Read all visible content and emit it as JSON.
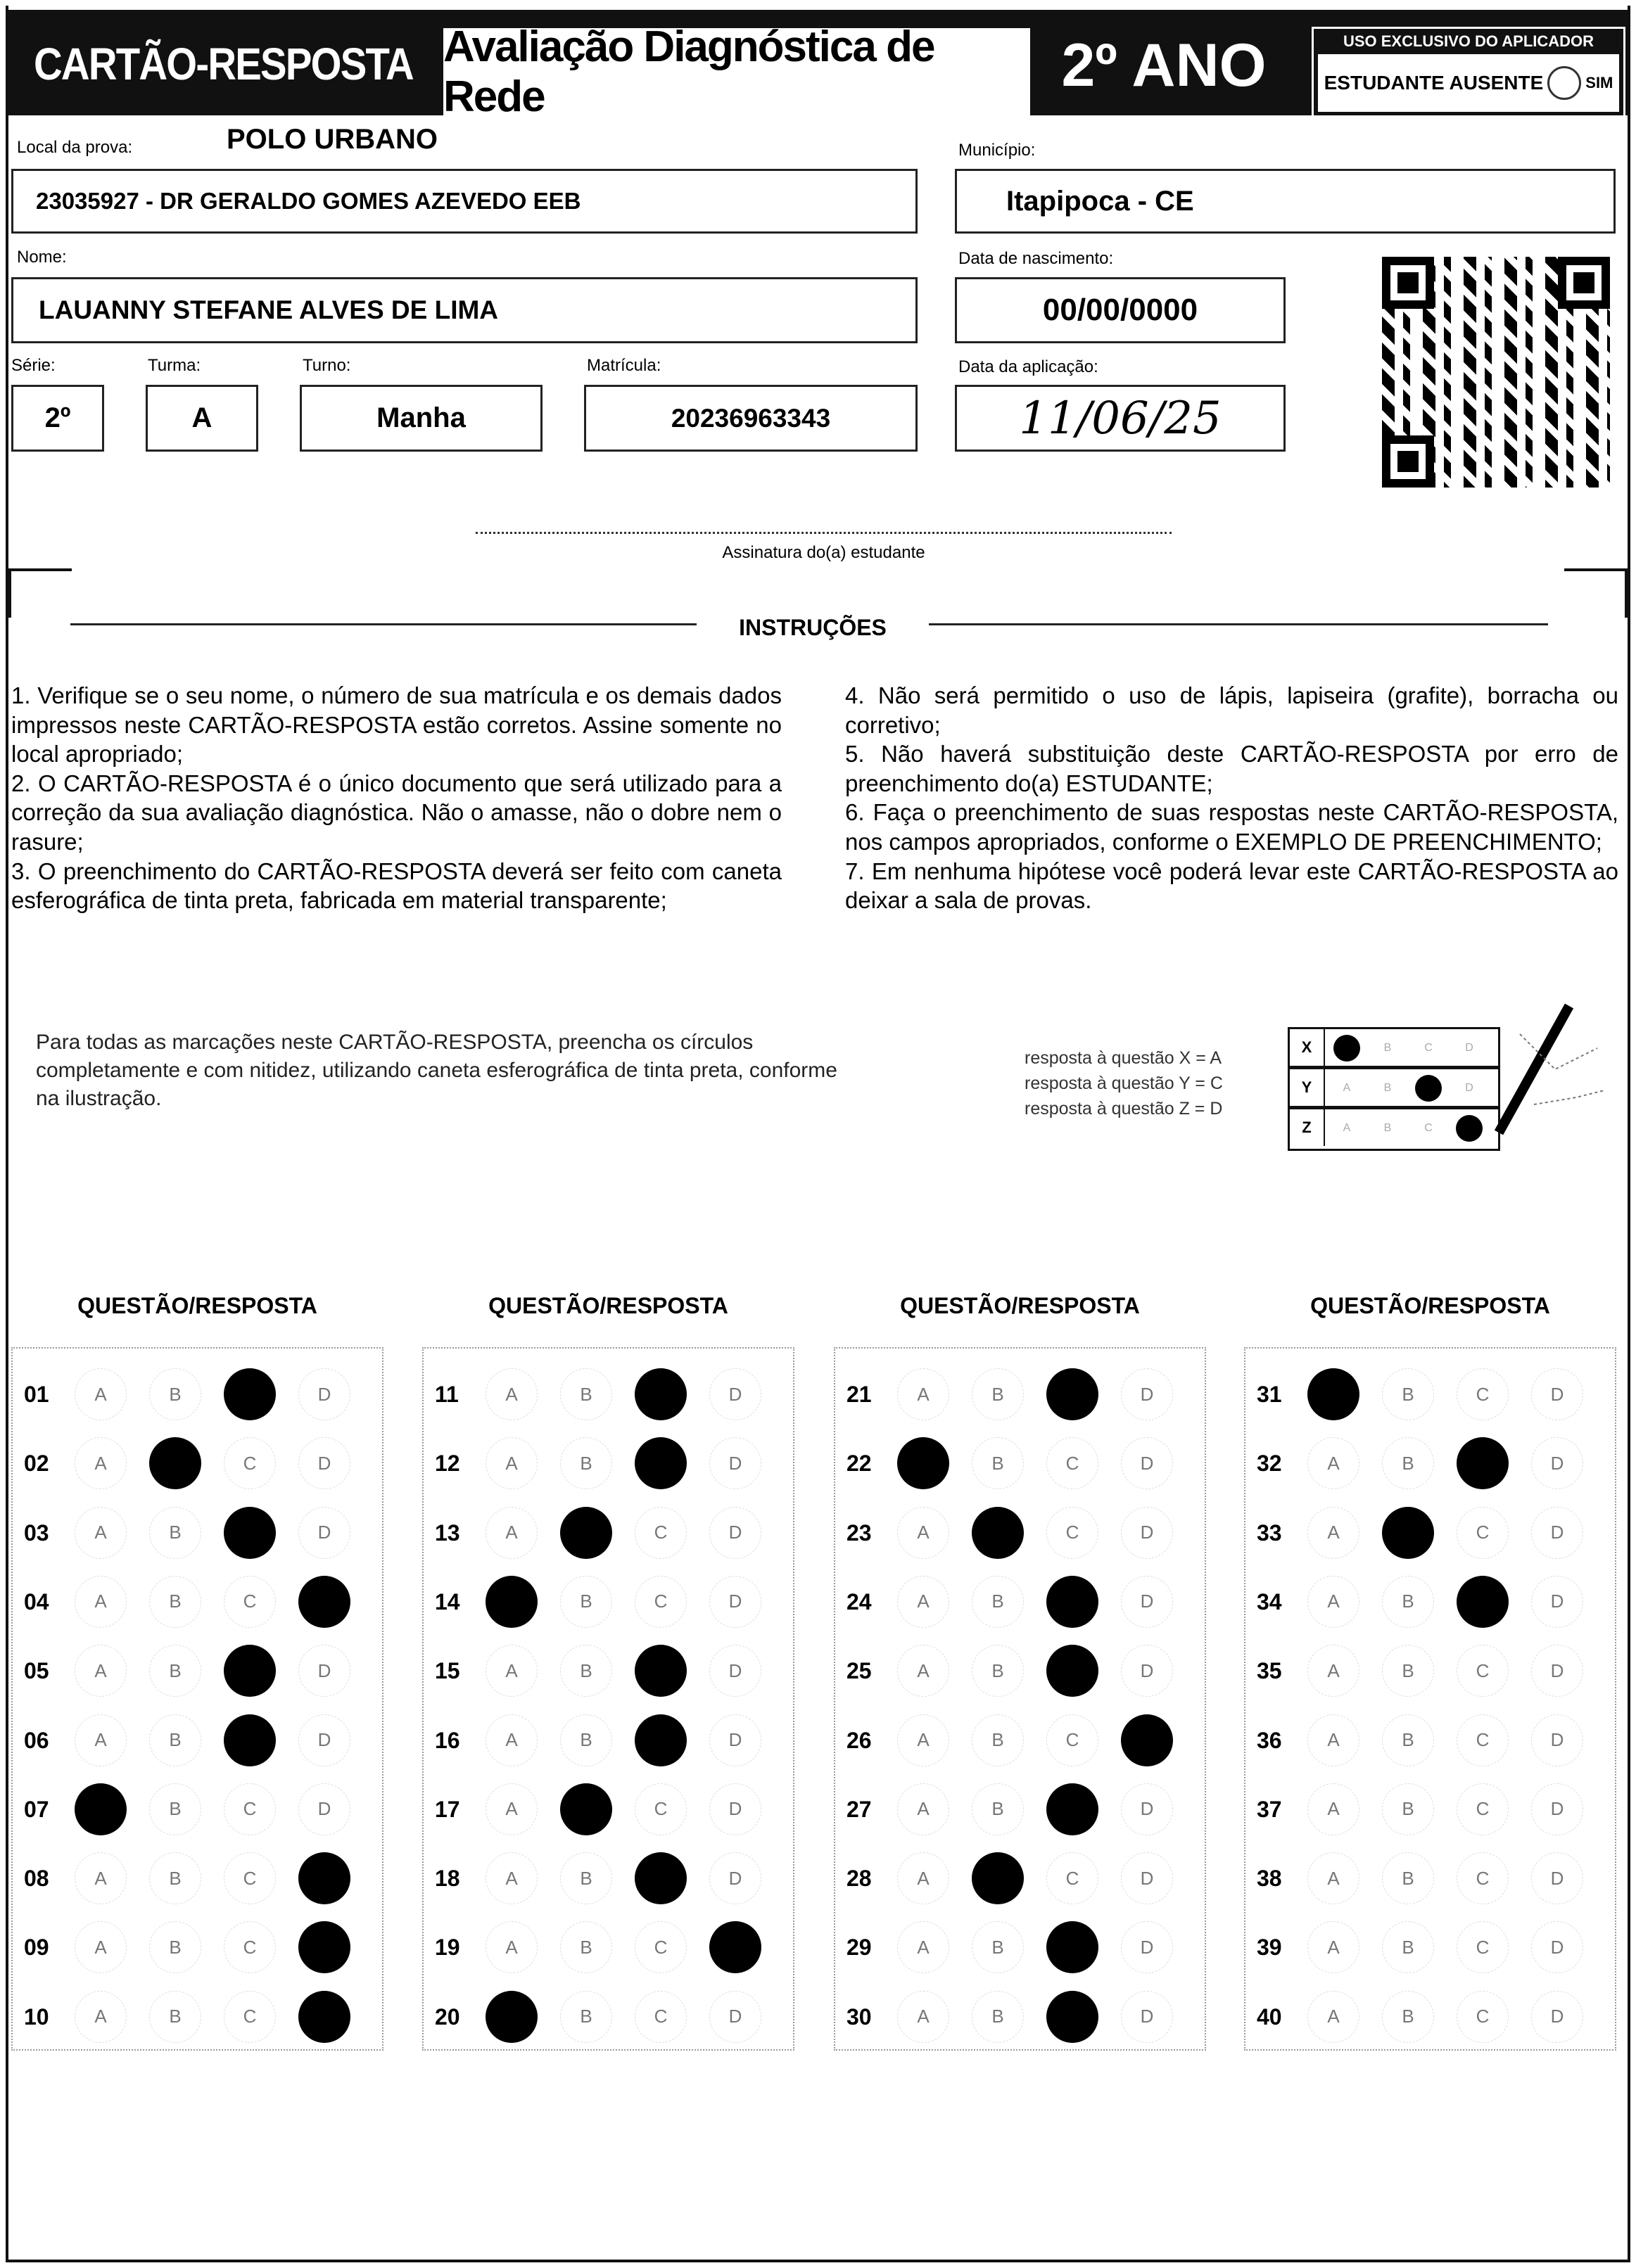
{
  "header": {
    "title": "CARTÃO-RESPOSTA",
    "subtitle": "Avaliação Diagnóstica de Rede",
    "grade": "2º ANO",
    "applicator_label": "USO EXCLUSIVO DO APLICADOR",
    "absent_label": "ESTUDANTE AUSENTE",
    "absent_option": "SIM"
  },
  "fields": {
    "local_label": "Local da prova:",
    "local_value": "POLO URBANO",
    "school": "23035927 - DR GERALDO GOMES AZEVEDO EEB",
    "municipio_label": "Município:",
    "municipio": "Itapipoca - CE",
    "nome_label": "Nome:",
    "nome": "LAUANNY STEFANE ALVES DE LIMA",
    "nascimento_label": "Data de nascimento:",
    "nascimento": "00/00/0000",
    "serie_label": "Série:",
    "serie": "2º",
    "turma_label": "Turma:",
    "turma": "A",
    "turno_label": "Turno:",
    "turno": "Manha",
    "matricula_label": "Matrícula:",
    "matricula": "20236963343",
    "aplicacao_label": "Data da aplicação:",
    "aplicacao": "11/06/25"
  },
  "signature_label": "Assinatura do(a) estudante",
  "instructions": {
    "title": "INSTRUÇÕES",
    "left": [
      "1. Verifique se o seu nome, o número de sua matrícula e os demais dados impressos neste CARTÃO-RESPOSTA estão corretos. Assine somente no local apropriado;",
      "2. O CARTÃO-RESPOSTA é o único documento que será utilizado para a correção da sua avaliação diagnóstica. Não o amasse, não o dobre nem o rasure;",
      "3. O preenchimento do CARTÃO-RESPOSTA deverá ser feito com caneta esferográfica de tinta preta, fabricada em material transparente;"
    ],
    "right": [
      "4. Não será permitido o uso de lápis, lapiseira (grafite), borracha ou corretivo;",
      "5. Não haverá substituição deste CARTÃO-RESPOSTA por erro de preenchimento do(a) ESTUDANTE;",
      "6. Faça o preenchimento de suas respostas neste CARTÃO-RESPOSTA, nos campos apropriados, conforme o EXEMPLO DE PREENCHIMENTO;",
      "7. Em nenhuma hipótese você poderá levar este CARTÃO-RESPOSTA ao deixar a sala de provas."
    ]
  },
  "fill_note": "Para todas as marcações neste CARTÃO-RESPOSTA, preencha os círculos completamente e com nitidez, utilizando caneta esferográfica de tinta preta, conforme na ilustração.",
  "example": {
    "legend": [
      "resposta à questão X = A",
      "resposta à questão Y = C",
      "resposta à questão Z = D"
    ],
    "rows": [
      {
        "q": "X",
        "answer": "A"
      },
      {
        "q": "Y",
        "answer": "C"
      },
      {
        "q": "Z",
        "answer": "D"
      }
    ]
  },
  "answers_header": "QUESTÃO/RESPOSTA",
  "options": [
    "A",
    "B",
    "C",
    "D"
  ],
  "answers": [
    {
      "q": "01",
      "a": "C"
    },
    {
      "q": "02",
      "a": "B"
    },
    {
      "q": "03",
      "a": "C"
    },
    {
      "q": "04",
      "a": "D"
    },
    {
      "q": "05",
      "a": "C"
    },
    {
      "q": "06",
      "a": "C"
    },
    {
      "q": "07",
      "a": "A"
    },
    {
      "q": "08",
      "a": "D"
    },
    {
      "q": "09",
      "a": "D"
    },
    {
      "q": "10",
      "a": "D"
    },
    {
      "q": "11",
      "a": "C"
    },
    {
      "q": "12",
      "a": "C"
    },
    {
      "q": "13",
      "a": "B"
    },
    {
      "q": "14",
      "a": "A"
    },
    {
      "q": "15",
      "a": "C"
    },
    {
      "q": "16",
      "a": "C"
    },
    {
      "q": "17",
      "a": "B"
    },
    {
      "q": "18",
      "a": "C"
    },
    {
      "q": "19",
      "a": "D"
    },
    {
      "q": "20",
      "a": "A"
    },
    {
      "q": "21",
      "a": "C"
    },
    {
      "q": "22",
      "a": "A"
    },
    {
      "q": "23",
      "a": "B"
    },
    {
      "q": "24",
      "a": "C"
    },
    {
      "q": "25",
      "a": "C"
    },
    {
      "q": "26",
      "a": "D"
    },
    {
      "q": "27",
      "a": "C"
    },
    {
      "q": "28",
      "a": "B"
    },
    {
      "q": "29",
      "a": "C"
    },
    {
      "q": "30",
      "a": "C"
    },
    {
      "q": "31",
      "a": "A"
    },
    {
      "q": "32",
      "a": "C"
    },
    {
      "q": "33",
      "a": "B"
    },
    {
      "q": "34",
      "a": "C"
    },
    {
      "q": "35",
      "a": ""
    },
    {
      "q": "36",
      "a": ""
    },
    {
      "q": "37",
      "a": ""
    },
    {
      "q": "38",
      "a": ""
    },
    {
      "q": "39",
      "a": ""
    },
    {
      "q": "40",
      "a": ""
    }
  ]
}
